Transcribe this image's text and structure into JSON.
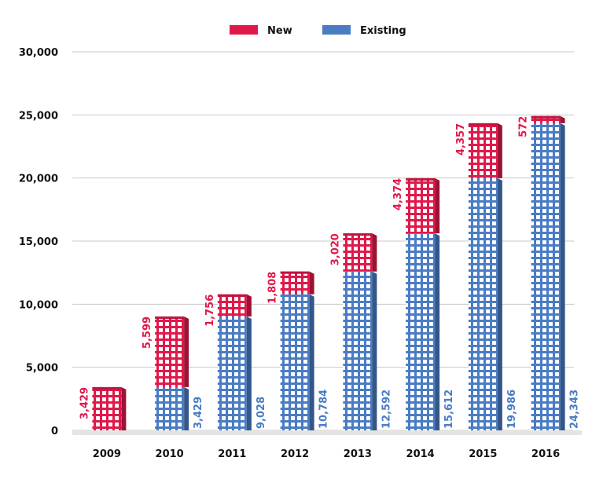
{
  "chart_data": {
    "type": "bar",
    "stacked": true,
    "categories": [
      "2009",
      "2010",
      "2011",
      "2012",
      "2013",
      "2014",
      "2015",
      "2016"
    ],
    "series": [
      {
        "name": "Existing",
        "values": [
          0,
          3429,
          9028,
          10784,
          12592,
          15612,
          19986,
          24343
        ],
        "labels": [
          "",
          "3,429",
          "9,028",
          "10,784",
          "12,592",
          "15,612",
          "19,986",
          "24,343"
        ],
        "color": "#4a7cc4"
      },
      {
        "name": "New",
        "values": [
          3429,
          5599,
          1756,
          1808,
          3020,
          4374,
          4357,
          572
        ],
        "labels": [
          "3,429",
          "5,599",
          "1,756",
          "1,808",
          "3,020",
          "4,374",
          "4,357",
          "572"
        ],
        "color": "#e0194a"
      }
    ],
    "ylim": [
      0,
      30000
    ],
    "yticks": [
      0,
      5000,
      10000,
      15000,
      20000,
      25000,
      30000
    ],
    "ytick_labels": [
      "0",
      "5,000",
      "10,000",
      "15,000",
      "20,000",
      "25,000",
      "30,000"
    ],
    "grid": true,
    "legend_position": "top-center",
    "legend": [
      {
        "label": "New",
        "color": "#e0194a"
      },
      {
        "label": "Existing",
        "color": "#4a7cc4"
      }
    ]
  }
}
